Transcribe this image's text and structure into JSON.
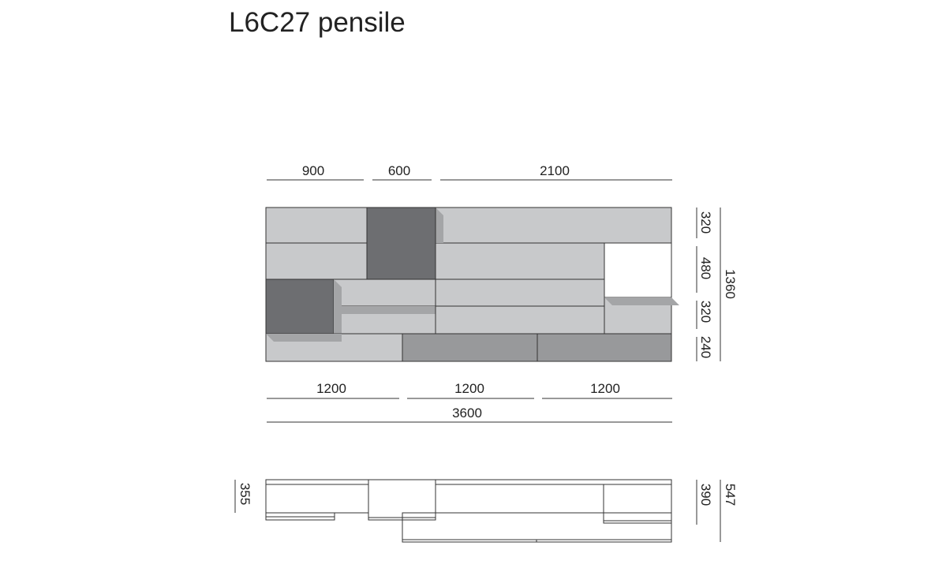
{
  "title": "L6C27 pensile",
  "front": {
    "top_dims": [
      900,
      600,
      2100
    ],
    "right_dims": [
      320,
      480,
      320,
      240
    ],
    "total_height": 1360,
    "bottom_dims": [
      1200,
      1200,
      1200
    ],
    "total_width": 3600
  },
  "side": {
    "left_dim": 355,
    "right_dims": [
      390,
      547
    ]
  }
}
